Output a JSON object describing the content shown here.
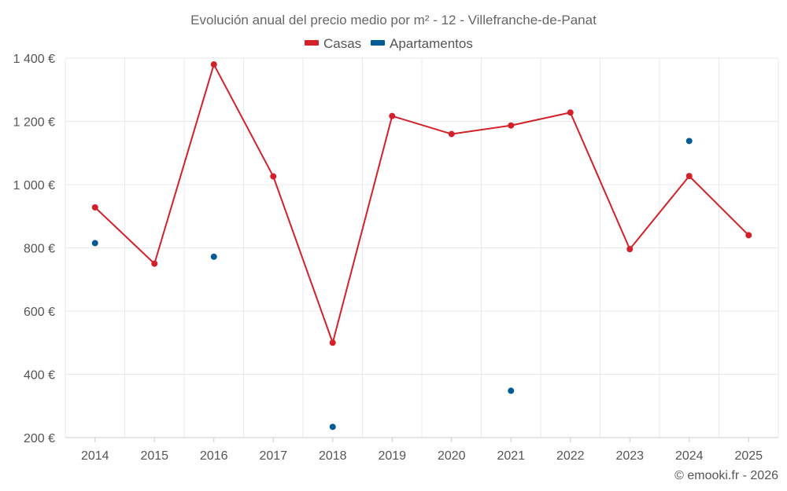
{
  "chart_data": {
    "type": "line",
    "title": "Evolución anual del precio medio por m² - 12 - Villefranche-de-Panat",
    "categories": [
      "2014",
      "2015",
      "2016",
      "2017",
      "2018",
      "2019",
      "2020",
      "2021",
      "2022",
      "2023",
      "2024",
      "2025"
    ],
    "series": [
      {
        "name": "Casas",
        "color": "#d32029",
        "style": "line",
        "values": [
          928,
          750,
          1380,
          1026,
          500,
          1217,
          1160,
          1187,
          1228,
          796,
          1027,
          840
        ]
      },
      {
        "name": "Apartamentos",
        "color": "#005b97",
        "style": "markers",
        "values": [
          815,
          null,
          772,
          null,
          234,
          null,
          null,
          348,
          null,
          null,
          1138,
          null
        ]
      }
    ],
    "yticks": [
      200,
      400,
      600,
      800,
      1000,
      1200,
      1400
    ],
    "ytick_labels": [
      "200 €",
      "400 €",
      "600 €",
      "800 €",
      "1 000 €",
      "1 200 €",
      "1 400 €"
    ],
    "ylim": [
      200,
      1400
    ],
    "xlabel": "",
    "ylabel": "",
    "legend": "top-center",
    "grid": true
  },
  "credit": "© emooki.fr - 2026"
}
